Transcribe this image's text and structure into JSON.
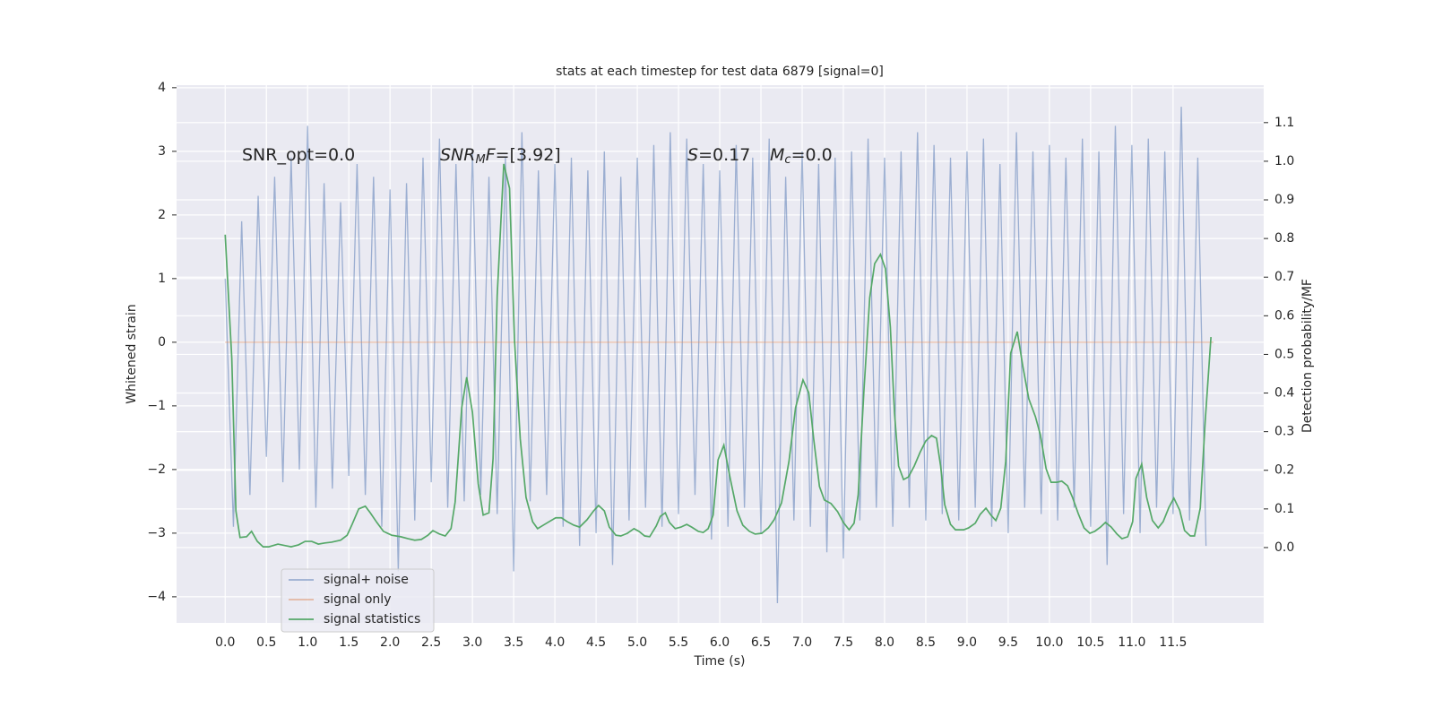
{
  "chart_data": {
    "type": "line",
    "title": "stats at each timestep for test data 6879 [signal=0]",
    "x_label": "Time (s)",
    "y_label": "Whitened strain",
    "y2_label": "Detection probability/MF",
    "xlim": [
      -0.59,
      12.6
    ],
    "ylim": [
      -4.41,
      4.04
    ],
    "y2lim": [
      -0.195,
      1.197
    ],
    "xticks": [
      {
        "value": 0,
        "label": "0.0"
      },
      0.5,
      {
        "value": 1,
        "label": "1.0"
      },
      1.5,
      {
        "value": 2,
        "label": "2.0"
      },
      2.5,
      {
        "value": 3,
        "label": "3.0"
      },
      3.5,
      {
        "value": 4,
        "label": "4.0"
      },
      4.5,
      {
        "value": 5,
        "label": "5.0"
      },
      5.5,
      {
        "value": 6,
        "label": "6.0"
      },
      6.5,
      {
        "value": 7,
        "label": "7.0"
      },
      7.5,
      {
        "value": 8,
        "label": "8.0"
      },
      8.5,
      {
        "value": 9,
        "label": "9.0"
      },
      9.5,
      {
        "value": 10,
        "label": "10.0"
      },
      10.5,
      {
        "value": 11,
        "label": "11.0"
      },
      11.5
    ],
    "yticks": [
      {
        "value": -4,
        "label": "−4"
      },
      {
        "value": -3,
        "label": "−3"
      },
      {
        "value": -2,
        "label": "−2"
      },
      {
        "value": -1,
        "label": "−1"
      },
      0,
      1,
      2,
      3,
      4
    ],
    "y2ticks": [
      {
        "value": 0,
        "label": "0.0"
      },
      0.1,
      0.2,
      0.3,
      0.4,
      0.5,
      0.6,
      0.7,
      0.8,
      0.9,
      {
        "value": 1,
        "label": "1.0"
      },
      1.1
    ],
    "grid": true,
    "legend": "lower left",
    "annotations": [
      {
        "parts": [
          {
            "text": "SNR_opt=0.0"
          }
        ]
      },
      {
        "parts": [
          {
            "text": "SNR",
            "italic": true
          },
          {
            "text": "M",
            "italic": true,
            "sub": true
          },
          {
            "text": "F",
            "italic": true
          },
          {
            "text": "=[3.92]"
          }
        ]
      },
      {
        "parts": [
          {
            "text": "S",
            "italic": true
          },
          {
            "text": "=0.17"
          }
        ]
      },
      {
        "parts": [
          {
            "text": "M",
            "italic": true
          },
          {
            "text": "c",
            "italic": true,
            "sub": true
          },
          {
            "text": "=0.0"
          }
        ]
      }
    ],
    "series": [
      {
        "name": "signal+ noise",
        "color": "#4c72b0",
        "opacity": 0.5,
        "x": [
          0,
          0.1,
          0.2,
          0.3,
          0.4,
          0.5,
          0.6,
          0.7,
          0.8,
          0.9,
          1,
          1.1,
          1.2,
          1.3,
          1.4,
          1.5,
          1.6,
          1.7,
          1.8,
          1.9,
          2,
          2.1,
          2.2,
          2.3,
          2.4,
          2.5,
          2.6,
          2.7,
          2.8,
          2.9,
          3,
          3.1,
          3.2,
          3.3,
          3.4,
          3.5,
          3.6,
          3.7,
          3.8,
          3.9,
          4,
          4.1,
          4.2,
          4.3,
          4.4,
          4.5,
          4.6,
          4.7,
          4.8,
          4.9,
          5,
          5.1,
          5.2,
          5.3,
          5.4,
          5.5,
          5.6,
          5.7,
          5.8,
          5.9,
          6,
          6.1,
          6.2,
          6.3,
          6.4,
          6.5,
          6.6,
          6.7,
          6.8,
          6.9,
          7,
          7.1,
          7.2,
          7.3,
          7.4,
          7.5,
          7.6,
          7.7,
          7.8,
          7.9,
          8,
          8.1,
          8.2,
          8.3,
          8.4,
          8.5,
          8.6,
          8.7,
          8.8,
          8.9,
          9,
          9.1,
          9.2,
          9.3,
          9.4,
          9.5,
          9.6,
          9.7,
          9.8,
          9.9,
          10,
          10.1,
          10.2,
          10.3,
          10.4,
          10.5,
          10.6,
          10.7,
          10.8,
          10.9,
          11,
          11.1,
          11.2,
          11.3,
          11.4,
          11.5,
          11.6,
          11.7,
          11.8,
          11.9
        ],
        "values": [
          1.0,
          -2.9,
          1.9,
          -2.4,
          2.3,
          -1.8,
          2.6,
          -2.2,
          2.9,
          -2.0,
          3.4,
          -2.6,
          2.5,
          -2.3,
          2.2,
          -2.1,
          2.8,
          -2.4,
          2.6,
          -2.9,
          2.4,
          -3.6,
          2.5,
          -2.8,
          2.9,
          -2.2,
          3.2,
          -2.6,
          2.8,
          -2.5,
          3.0,
          -2.4,
          2.6,
          -2.7,
          2.9,
          -3.6,
          3.3,
          -2.5,
          2.7,
          -2.4,
          2.8,
          -2.9,
          2.9,
          -3.2,
          2.7,
          -3.0,
          3.0,
          -3.5,
          2.6,
          -2.8,
          2.9,
          -2.6,
          3.1,
          -2.9,
          3.3,
          -2.7,
          3.2,
          -2.4,
          2.8,
          -3.1,
          2.7,
          -2.9,
          3.1,
          -2.6,
          2.9,
          -3.0,
          3.2,
          -4.1,
          2.6,
          -2.8,
          3.0,
          -2.9,
          2.8,
          -3.3,
          2.9,
          -3.4,
          3.0,
          -2.8,
          3.2,
          -2.6,
          2.9,
          -2.9,
          3.0,
          -2.6,
          3.3,
          -2.8,
          3.1,
          -2.7,
          2.9,
          -2.8,
          3.0,
          -2.6,
          3.2,
          -2.9,
          2.8,
          -3.0,
          3.3,
          -2.6,
          3.0,
          -2.7,
          3.1,
          -2.8,
          2.9,
          -2.6,
          3.2,
          -2.9,
          3.0,
          -3.5,
          3.4,
          -2.7,
          3.1,
          -3.0,
          3.2,
          -2.6,
          3.0,
          -2.7,
          3.7,
          -2.8,
          2.9,
          -3.2
        ]
      },
      {
        "name": "signal only",
        "color": "#dd8452",
        "opacity": 0.5,
        "x": [
          0,
          11.99
        ],
        "values": [
          0,
          0
        ]
      },
      {
        "name": "signal statistics",
        "color": "#55a868",
        "opacity": 1,
        "axis": "y2",
        "x": [
          0.0,
          0.08,
          0.13,
          0.18,
          0.26,
          0.32,
          0.39,
          0.46,
          0.53,
          0.64,
          0.73,
          0.8,
          0.89,
          0.97,
          1.05,
          1.13,
          1.21,
          1.29,
          1.4,
          1.48,
          1.54,
          1.62,
          1.7,
          1.76,
          1.84,
          1.92,
          2.02,
          2.13,
          2.22,
          2.3,
          2.38,
          2.46,
          2.52,
          2.6,
          2.67,
          2.74,
          2.79,
          2.87,
          2.93,
          3.0,
          3.07,
          3.13,
          3.2,
          3.25,
          3.3,
          3.38,
          3.45,
          3.51,
          3.58,
          3.65,
          3.73,
          3.79,
          3.86,
          3.93,
          4.01,
          4.08,
          4.15,
          4.23,
          4.3,
          4.39,
          4.47,
          4.53,
          4.6,
          4.66,
          4.74,
          4.8,
          4.88,
          4.96,
          5.02,
          5.09,
          5.15,
          5.23,
          5.28,
          5.34,
          5.39,
          5.46,
          5.53,
          5.6,
          5.66,
          5.74,
          5.8,
          5.86,
          5.92,
          5.98,
          6.05,
          6.13,
          6.21,
          6.28,
          6.36,
          6.43,
          6.51,
          6.59,
          6.66,
          6.75,
          6.84,
          6.92,
          7.01,
          7.08,
          7.14,
          7.21,
          7.27,
          7.35,
          7.43,
          7.5,
          7.57,
          7.63,
          7.68,
          7.75,
          7.82,
          7.88,
          7.95,
          8.01,
          8.07,
          8.12,
          8.17,
          8.23,
          8.29,
          8.36,
          8.43,
          8.5,
          8.57,
          8.63,
          8.68,
          8.73,
          8.8,
          8.86,
          8.96,
          9.02,
          9.1,
          9.16,
          9.23,
          9.29,
          9.35,
          9.41,
          9.47,
          9.53,
          9.61,
          9.68,
          9.75,
          9.83,
          9.89,
          9.96,
          10.02,
          10.09,
          10.15,
          10.22,
          10.28,
          10.35,
          10.42,
          10.49,
          10.55,
          10.62,
          10.68,
          10.75,
          10.82,
          10.88,
          10.95,
          11.01,
          11.05,
          11.12,
          11.18,
          11.25,
          11.32,
          11.38,
          11.45,
          11.51,
          11.58,
          11.64,
          11.71,
          11.76,
          11.83,
          11.89,
          11.96
        ],
        "values": [
          0.81,
          0.49,
          0.095,
          0.026,
          0.028,
          0.042,
          0.016,
          0.002,
          0.002,
          0.009,
          0.005,
          0.002,
          0.007,
          0.016,
          0.016,
          0.009,
          0.012,
          0.014,
          0.019,
          0.032,
          0.06,
          0.1,
          0.107,
          0.09,
          0.065,
          0.042,
          0.032,
          0.028,
          0.023,
          0.019,
          0.021,
          0.032,
          0.044,
          0.035,
          0.03,
          0.049,
          0.118,
          0.362,
          0.441,
          0.35,
          0.165,
          0.084,
          0.09,
          0.23,
          0.652,
          0.993,
          0.93,
          0.536,
          0.281,
          0.13,
          0.067,
          0.049,
          0.058,
          0.067,
          0.077,
          0.077,
          0.067,
          0.058,
          0.053,
          0.072,
          0.095,
          0.109,
          0.095,
          0.053,
          0.032,
          0.03,
          0.037,
          0.049,
          0.042,
          0.03,
          0.028,
          0.056,
          0.081,
          0.09,
          0.065,
          0.049,
          0.053,
          0.06,
          0.053,
          0.042,
          0.039,
          0.049,
          0.084,
          0.227,
          0.265,
          0.176,
          0.095,
          0.058,
          0.042,
          0.035,
          0.037,
          0.051,
          0.072,
          0.116,
          0.223,
          0.362,
          0.434,
          0.401,
          0.281,
          0.158,
          0.123,
          0.114,
          0.093,
          0.065,
          0.046,
          0.063,
          0.137,
          0.408,
          0.647,
          0.735,
          0.759,
          0.722,
          0.571,
          0.35,
          0.211,
          0.176,
          0.183,
          0.211,
          0.246,
          0.276,
          0.29,
          0.283,
          0.211,
          0.111,
          0.06,
          0.046,
          0.046,
          0.051,
          0.063,
          0.086,
          0.102,
          0.084,
          0.07,
          0.102,
          0.223,
          0.503,
          0.559,
          0.466,
          0.385,
          0.339,
          0.292,
          0.204,
          0.169,
          0.169,
          0.172,
          0.16,
          0.13,
          0.088,
          0.051,
          0.037,
          0.042,
          0.053,
          0.065,
          0.053,
          0.035,
          0.023,
          0.028,
          0.067,
          0.179,
          0.216,
          0.13,
          0.07,
          0.051,
          0.067,
          0.104,
          0.128,
          0.097,
          0.044,
          0.03,
          0.03,
          0.102,
          0.327,
          0.545
        ]
      }
    ]
  }
}
